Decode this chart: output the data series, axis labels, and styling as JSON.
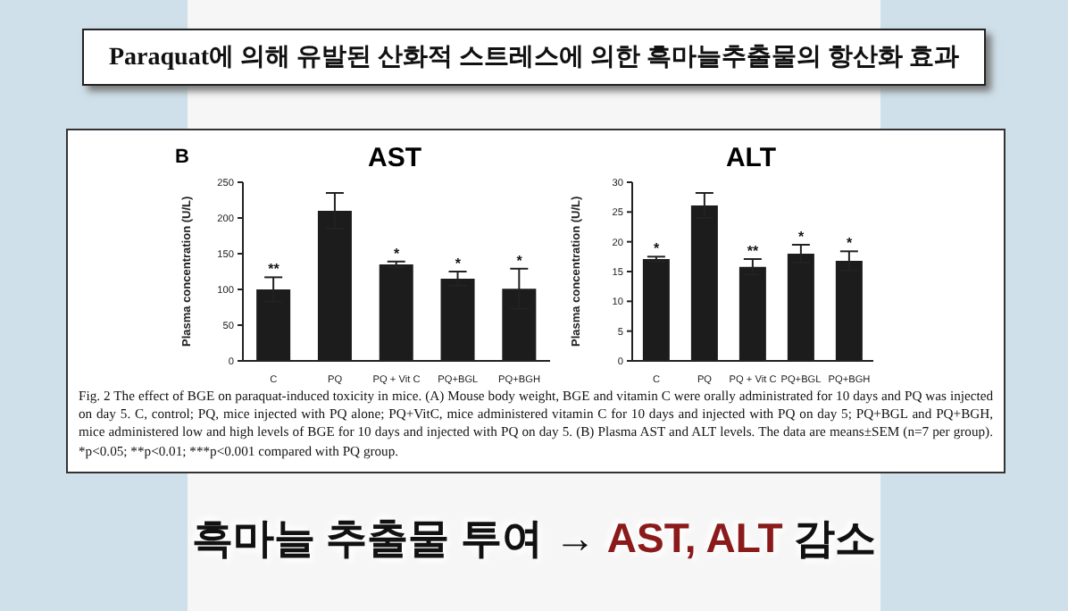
{
  "chart_data": [
    {
      "type": "bar",
      "title": "AST",
      "ylabel": "Plasma concentration (U/L)",
      "categories": [
        "C",
        "PQ",
        "PQ + Vit C",
        "PQ+BGL",
        "PQ+BGH"
      ],
      "values": [
        100,
        210,
        135,
        115,
        101
      ],
      "errors": [
        17,
        25,
        4,
        10,
        28
      ],
      "color": "#1c1c1c",
      "ylim": [
        0,
        250
      ],
      "yticks": [
        0,
        50,
        100,
        150,
        200,
        250
      ],
      "grid": false,
      "legend": false,
      "annotations": [
        "Paraquat에 의해 유발된 산화적 스트레스에 의한 흑마늘추출물의 항산화 효과",
        "B",
        "Fig. 2 The effect of BGE on paraquat-induced toxicity in mice. (A) Mouse body weight, BGE and vitamin C were orally administrated for 10 days and PQ was injected on day 5. C, control; PQ, mice injected with PQ alone; PQ+VitC, mice administered vitamin C for 10 days and injected with PQ on day 5; PQ+BGL and PQ+BGH, mice administered low and high levels of BGE for 10 days and injected with PQ on day 5. (B) Plasma AST and ALT levels. The data are means±SEM (n=7 per group). *p<0.05; **p<0.01; ***p<0.001 compared with PQ group.",
        "흑마늘 추출물 투여 →",
        "AST, ALT",
        "감소",
        {
          "text": "**",
          "x": "C",
          "y": 117
        },
        {
          "text": "*",
          "x": "PQ + Vit C",
          "y": 139
        },
        {
          "text": "*",
          "x": "PQ+BGL",
          "y": 125
        },
        {
          "text": "*",
          "x": "PQ+BGH",
          "y": 129
        }
      ]
    },
    {
      "type": "bar",
      "title": "ALT",
      "ylabel": "Plasma concentration (U/L)",
      "categories": [
        "C",
        "PQ",
        "PQ + Vit C",
        "PQ+BGL",
        "PQ+BGH"
      ],
      "values": [
        17.1,
        26.1,
        15.8,
        18,
        16.8
      ],
      "errors": [
        0.4,
        2.1,
        1.3,
        1.5,
        1.6
      ],
      "color": "#1c1c1c",
      "ylim": [
        0,
        30
      ],
      "yticks": [
        0,
        5,
        10,
        15,
        20,
        25,
        30
      ],
      "grid": false,
      "legend": false,
      "annotations": [
        {
          "text": "*",
          "x": "C",
          "y": 17.5
        },
        {
          "text": "**",
          "x": "PQ + Vit C",
          "y": 17.1
        },
        {
          "text": "*",
          "x": "PQ+BGL",
          "y": 19.5
        },
        {
          "text": "*",
          "x": "PQ+BGH",
          "y": 18.4
        }
      ]
    }
  ]
}
